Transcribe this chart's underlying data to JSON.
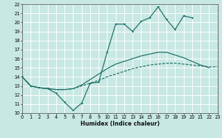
{
  "xlabel": "Humidex (Indice chaleur)",
  "xlim": [
    0,
    23
  ],
  "ylim": [
    10,
    22
  ],
  "xticks": [
    0,
    1,
    2,
    3,
    4,
    5,
    6,
    7,
    8,
    9,
    10,
    11,
    12,
    13,
    14,
    15,
    16,
    17,
    18,
    19,
    20,
    21,
    22,
    23
  ],
  "yticks": [
    10,
    11,
    12,
    13,
    14,
    15,
    16,
    17,
    18,
    19,
    20,
    21,
    22
  ],
  "bg_color": "#c8e8e4",
  "grid_color": "#ffffff",
  "line_color": "#1a6e64",
  "curve1_x": [
    0,
    1,
    2,
    3,
    4,
    5,
    6,
    7,
    8,
    9,
    10,
    11,
    12,
    13,
    14,
    15,
    16,
    17,
    18,
    19,
    20
  ],
  "curve1_y": [
    14.0,
    13.0,
    12.8,
    12.7,
    12.2,
    11.2,
    10.3,
    11.1,
    13.3,
    13.4,
    16.7,
    19.8,
    19.8,
    19.0,
    20.1,
    20.5,
    21.7,
    20.3,
    19.2,
    20.7,
    20.5
  ],
  "curve2_x": [
    0,
    1,
    2,
    3,
    4,
    5,
    6,
    7,
    8,
    9,
    10,
    11,
    12,
    13,
    14,
    15,
    16,
    17,
    18,
    19,
    20,
    21,
    22
  ],
  "curve2_y": [
    14.0,
    13.0,
    12.8,
    12.7,
    12.6,
    12.6,
    12.7,
    13.1,
    13.7,
    14.3,
    14.9,
    15.4,
    15.7,
    16.0,
    16.3,
    16.5,
    16.7,
    16.7,
    16.4,
    16.1,
    15.7,
    15.3,
    15.0
  ],
  "curve3_x": [
    0,
    1,
    2,
    3,
    4,
    5,
    6,
    7,
    8,
    9,
    10,
    11,
    12,
    13,
    14,
    15,
    16,
    17,
    18,
    19,
    20,
    21,
    22,
    23
  ],
  "curve3_y": [
    14.0,
    13.0,
    12.8,
    12.7,
    12.6,
    12.6,
    12.7,
    13.0,
    13.3,
    13.6,
    14.0,
    14.3,
    14.6,
    14.9,
    15.1,
    15.3,
    15.4,
    15.5,
    15.5,
    15.4,
    15.3,
    15.2,
    15.1,
    15.1
  ]
}
